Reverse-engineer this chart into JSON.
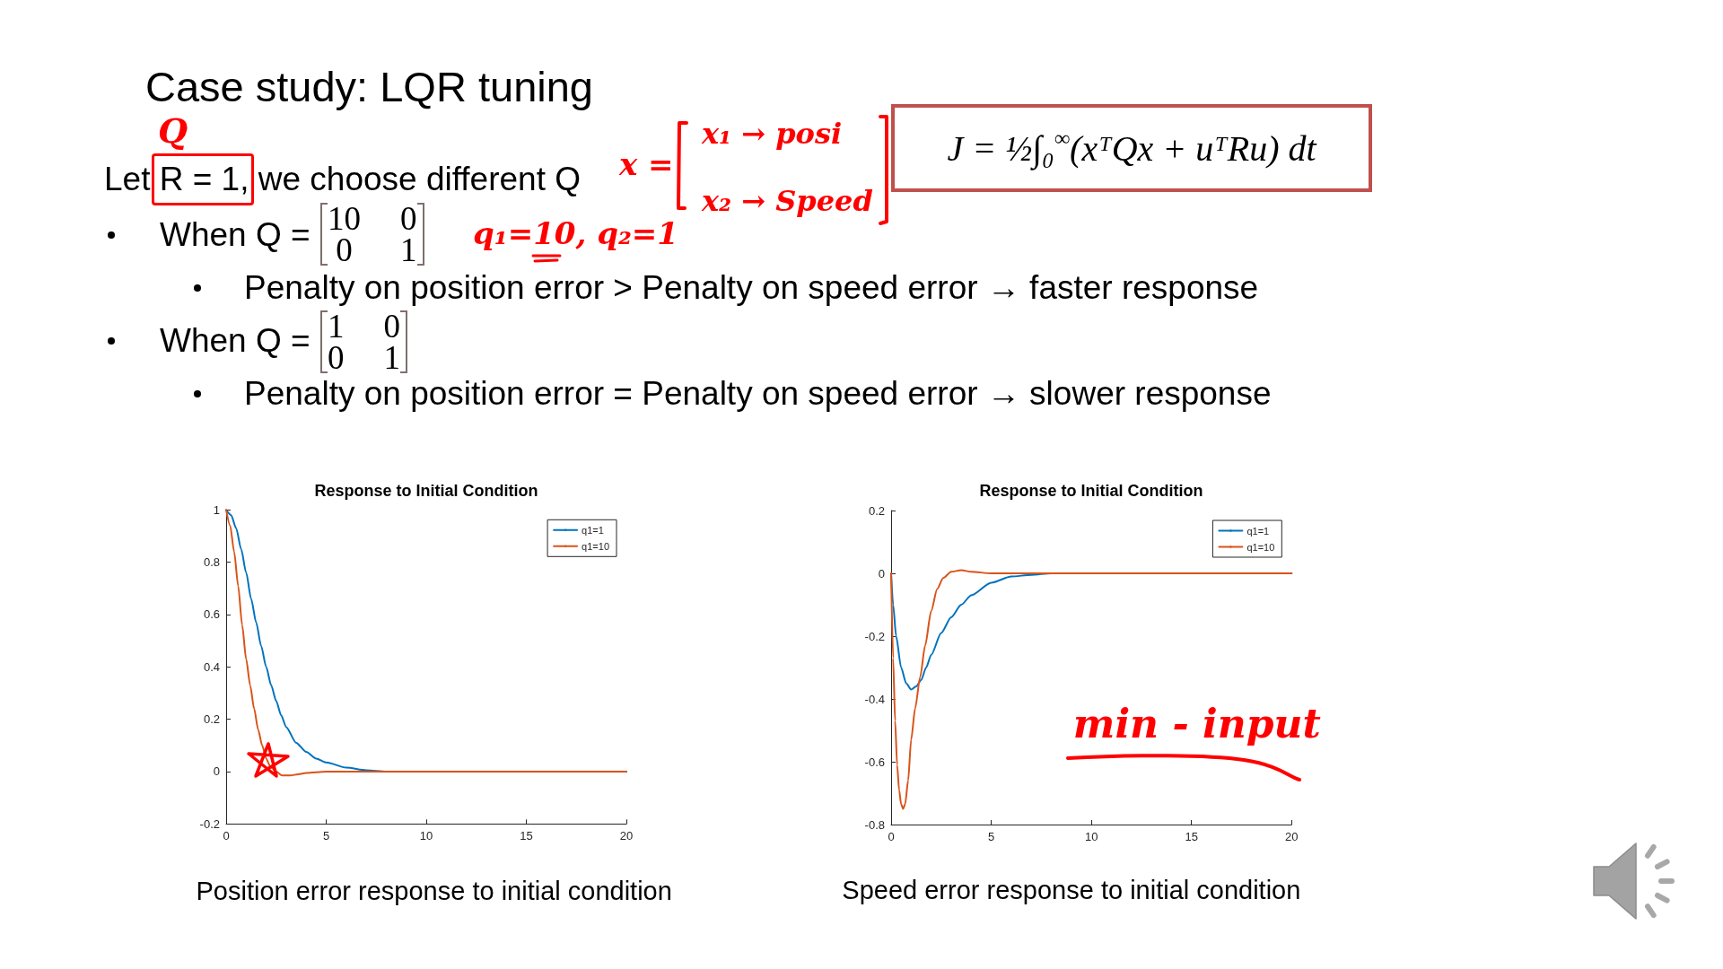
{
  "chart_data": [
    {
      "type": "other",
      "title": "Case study: LQR tuning",
      "annotations": [
        "Let R = 1, we choose different Q",
        "When Q =",
        "10  0\n0  1",
        "Penalty on position error > Penalty on speed error → faster response",
        "When Q =",
        "1  0\n0  1",
        "Penalty on position error = Penalty on speed error → slower response",
        "J = ½∫₀$^{∞}$(xᵀQx + uᵀRu) dt",
        "Q",
        "x =",
        "x₁ → posi",
        "x₂ → Speed",
        "q₁=10, q₂=1"
      ]
    },
    {
      "type": "line",
      "title": "Response to Initial Condition",
      "series": [
        {
          "name": "q1=1",
          "color": "#0072bd",
          "x": [
            0,
            0.25,
            0.5,
            0.75,
            1,
            1.25,
            1.5,
            1.75,
            2,
            2.25,
            2.5,
            2.75,
            3,
            3.5,
            4,
            4.5,
            5,
            6,
            7,
            8,
            10,
            20
          ],
          "values": [
            1,
            0.98,
            0.93,
            0.85,
            0.76,
            0.66,
            0.57,
            0.48,
            0.4,
            0.33,
            0.27,
            0.215,
            0.17,
            0.11,
            0.075,
            0.05,
            0.035,
            0.015,
            0.005,
            0,
            0,
            0
          ]
        },
        {
          "name": "q1=10",
          "color": "#d95319",
          "x": [
            0,
            0.2,
            0.4,
            0.6,
            0.8,
            1,
            1.2,
            1.4,
            1.6,
            1.8,
            2,
            2.2,
            2.5,
            2.8,
            3.2,
            3.6,
            4,
            5,
            20
          ],
          "values": [
            1,
            0.94,
            0.84,
            0.71,
            0.56,
            0.43,
            0.33,
            0.24,
            0.16,
            0.1,
            0.05,
            0.02,
            0,
            -0.015,
            -0.015,
            -0.01,
            -0.005,
            0,
            0
          ]
        }
      ],
      "xlim": [
        0,
        20
      ],
      "xticks": [
        0,
        5,
        10,
        15,
        20
      ],
      "ylim": [
        -0.2,
        1
      ],
      "yticks": [
        -0.2,
        0,
        0.2,
        0.4,
        0.6,
        0.8,
        1
      ],
      "legend": "top right",
      "marker": "none",
      "annotations": [
        "Position error response to initial condition"
      ]
    },
    {
      "type": "line",
      "title": "Response to Initial Condition",
      "series": [
        {
          "name": "q1=1",
          "color": "#0072bd",
          "x": [
            0,
            0.1,
            0.25,
            0.5,
            0.75,
            1,
            1.25,
            1.5,
            1.75,
            2,
            2.5,
            3,
            3.5,
            4,
            5,
            6,
            7,
            8,
            20
          ],
          "values": [
            0,
            -0.1,
            -0.2,
            -0.3,
            -0.35,
            -0.37,
            -0.36,
            -0.34,
            -0.3,
            -0.26,
            -0.19,
            -0.14,
            -0.1,
            -0.07,
            -0.03,
            -0.01,
            -0.005,
            0,
            0
          ]
        },
        {
          "name": "q1=10",
          "color": "#d95319",
          "x": [
            0,
            0.1,
            0.2,
            0.3,
            0.4,
            0.5,
            0.6,
            0.7,
            0.85,
            1,
            1.2,
            1.45,
            1.7,
            2,
            2.3,
            2.6,
            3,
            3.5,
            4,
            5,
            20
          ],
          "values": [
            0,
            -0.27,
            -0.47,
            -0.61,
            -0.69,
            -0.735,
            -0.75,
            -0.735,
            -0.66,
            -0.53,
            -0.43,
            -0.33,
            -0.23,
            -0.12,
            -0.05,
            -0.015,
            0.005,
            0.01,
            0.005,
            0,
            0
          ]
        }
      ],
      "xlim": [
        0,
        20
      ],
      "xticks": [
        0,
        5,
        10,
        15,
        20
      ],
      "ylim": [
        -0.8,
        0.2
      ],
      "yticks": [
        -0.8,
        -0.6,
        -0.4,
        -0.2,
        0,
        0.2
      ],
      "legend": "top right",
      "marker": "none",
      "annotations": [
        "Speed error response to initial condition",
        "min - input"
      ]
    }
  ]
}
